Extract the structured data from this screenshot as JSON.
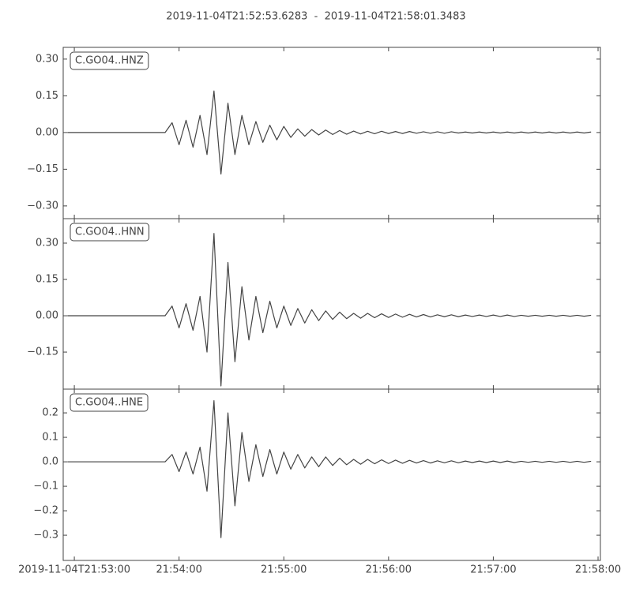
{
  "title": "2019-11-04T21:52:53.6283  -  2019-11-04T21:58:01.3483",
  "chart_data": [
    {
      "type": "line",
      "label": "C.GO04..HNZ",
      "color": "#444444",
      "xlim": [
        "21:52:53.6283",
        "21:58:01.3483"
      ],
      "ylim": [
        -0.352,
        0.348
      ],
      "yticks": [
        {
          "value": -0.3,
          "label": "−0.30"
        },
        {
          "value": -0.15,
          "label": "−0.15"
        },
        {
          "value": 0,
          "label": "0.00"
        },
        {
          "value": 0.15,
          "label": "0.15"
        },
        {
          "value": 0.3,
          "label": "0.30"
        }
      ],
      "x": [
        "21:52:56",
        "21:53:00",
        "21:53:04",
        "21:53:08",
        "21:53:12",
        "21:53:16",
        "21:53:20",
        "21:53:24",
        "21:53:28",
        "21:53:32",
        "21:53:36",
        "21:53:40",
        "21:53:44",
        "21:53:48",
        "21:53:52",
        "21:53:56",
        "21:54:00",
        "21:54:04",
        "21:54:08",
        "21:54:12",
        "21:54:16",
        "21:54:20",
        "21:54:24",
        "21:54:28",
        "21:54:32",
        "21:54:36",
        "21:54:40",
        "21:54:44",
        "21:54:48",
        "21:54:52",
        "21:54:56",
        "21:55:00",
        "21:55:04",
        "21:55:08",
        "21:55:12",
        "21:55:16",
        "21:55:20",
        "21:55:24",
        "21:55:28",
        "21:55:32",
        "21:55:36",
        "21:55:40",
        "21:55:44",
        "21:55:48",
        "21:55:52",
        "21:55:56",
        "21:56:00",
        "21:56:04",
        "21:56:08",
        "21:56:12",
        "21:56:16",
        "21:56:20",
        "21:56:24",
        "21:56:28",
        "21:56:32",
        "21:56:36",
        "21:56:40",
        "21:56:44",
        "21:56:48",
        "21:56:52",
        "21:56:56",
        "21:57:00",
        "21:57:04",
        "21:57:08",
        "21:57:12",
        "21:57:16",
        "21:57:20",
        "21:57:24",
        "21:57:28",
        "21:57:32",
        "21:57:36",
        "21:57:40",
        "21:57:44",
        "21:57:48",
        "21:57:52",
        "21:57:56"
      ],
      "values": [
        0,
        0,
        0,
        0,
        0,
        0,
        0,
        0,
        0,
        0,
        0,
        0,
        0,
        0,
        0,
        0.04,
        -0.05,
        0.05,
        -0.06,
        0.07,
        -0.09,
        0.17,
        -0.17,
        0.12,
        -0.09,
        0.07,
        -0.05,
        0.045,
        -0.04,
        0.03,
        -0.03,
        0.025,
        -0.02,
        0.015,
        -0.015,
        0.012,
        -0.01,
        0.01,
        -0.008,
        0.008,
        -0.007,
        0.006,
        -0.006,
        0.005,
        -0.005,
        0.005,
        -0.004,
        0.004,
        -0.004,
        0.004,
        -0.003,
        0.003,
        -0.003,
        0.003,
        -0.003,
        0.003,
        -0.002,
        0.002,
        -0.002,
        0.002,
        -0.002,
        0.002,
        -0.002,
        0.002,
        -0.002,
        0.002,
        -0.002,
        0.002,
        -0.002,
        0.002,
        -0.002,
        0.002,
        -0.002,
        0.002,
        -0.002,
        0.002
      ]
    },
    {
      "type": "line",
      "label": "C.GO04..HNN",
      "color": "#444444",
      "xlim": [
        "21:52:53.6283",
        "21:58:01.3483"
      ],
      "ylim": [
        -0.303,
        0.401
      ],
      "yticks": [
        {
          "value": -0.15,
          "label": "−0.15"
        },
        {
          "value": 0,
          "label": "0.00"
        },
        {
          "value": 0.15,
          "label": "0.15"
        },
        {
          "value": 0.3,
          "label": "0.30"
        }
      ],
      "x": [
        "21:52:56",
        "21:53:00",
        "21:53:04",
        "21:53:08",
        "21:53:12",
        "21:53:16",
        "21:53:20",
        "21:53:24",
        "21:53:28",
        "21:53:32",
        "21:53:36",
        "21:53:40",
        "21:53:44",
        "21:53:48",
        "21:53:52",
        "21:53:56",
        "21:54:00",
        "21:54:04",
        "21:54:08",
        "21:54:12",
        "21:54:16",
        "21:54:20",
        "21:54:24",
        "21:54:28",
        "21:54:32",
        "21:54:36",
        "21:54:40",
        "21:54:44",
        "21:54:48",
        "21:54:52",
        "21:54:56",
        "21:55:00",
        "21:55:04",
        "21:55:08",
        "21:55:12",
        "21:55:16",
        "21:55:20",
        "21:55:24",
        "21:55:28",
        "21:55:32",
        "21:55:36",
        "21:55:40",
        "21:55:44",
        "21:55:48",
        "21:55:52",
        "21:55:56",
        "21:56:00",
        "21:56:04",
        "21:56:08",
        "21:56:12",
        "21:56:16",
        "21:56:20",
        "21:56:24",
        "21:56:28",
        "21:56:32",
        "21:56:36",
        "21:56:40",
        "21:56:44",
        "21:56:48",
        "21:56:52",
        "21:56:56",
        "21:57:00",
        "21:57:04",
        "21:57:08",
        "21:57:12",
        "21:57:16",
        "21:57:20",
        "21:57:24",
        "21:57:28",
        "21:57:32",
        "21:57:36",
        "21:57:40",
        "21:57:44",
        "21:57:48",
        "21:57:52",
        "21:57:56"
      ],
      "values": [
        0,
        0,
        0,
        0,
        0,
        0,
        0,
        0,
        0,
        0,
        0,
        0,
        0,
        0,
        0,
        0.04,
        -0.05,
        0.05,
        -0.06,
        0.08,
        -0.15,
        0.34,
        -0.29,
        0.22,
        -0.19,
        0.12,
        -0.1,
        0.08,
        -0.07,
        0.06,
        -0.05,
        0.04,
        -0.04,
        0.03,
        -0.03,
        0.025,
        -0.02,
        0.02,
        -0.015,
        0.015,
        -0.012,
        0.01,
        -0.01,
        0.01,
        -0.008,
        0.008,
        -0.007,
        0.007,
        -0.006,
        0.006,
        -0.005,
        0.005,
        -0.005,
        0.004,
        -0.004,
        0.004,
        -0.004,
        0.003,
        -0.003,
        0.003,
        -0.003,
        0.003,
        -0.003,
        0.003,
        -0.003,
        0.002,
        -0.002,
        0.002,
        -0.002,
        0.002,
        -0.002,
        0.002,
        -0.002,
        0.002,
        -0.002,
        0.002
      ]
    },
    {
      "type": "line",
      "label": "C.GO04..HNE",
      "color": "#444444",
      "xlim": [
        "21:52:53.6283",
        "21:58:01.3483"
      ],
      "ylim": [
        -0.403,
        0.297
      ],
      "yticks": [
        {
          "value": -0.3,
          "label": "−0.3"
        },
        {
          "value": -0.2,
          "label": "−0.2"
        },
        {
          "value": -0.1,
          "label": "−0.1"
        },
        {
          "value": 0,
          "label": "0.0"
        },
        {
          "value": 0.1,
          "label": "0.1"
        },
        {
          "value": 0.2,
          "label": "0.2"
        }
      ],
      "xticks": [
        {
          "value": "21:53:00",
          "label": "2019-11-04T21:53:00"
        },
        "21:54:00",
        "21:55:00",
        "21:56:00",
        "21:57:00",
        "21:58:00"
      ],
      "x": [
        "21:52:56",
        "21:53:00",
        "21:53:04",
        "21:53:08",
        "21:53:12",
        "21:53:16",
        "21:53:20",
        "21:53:24",
        "21:53:28",
        "21:53:32",
        "21:53:36",
        "21:53:40",
        "21:53:44",
        "21:53:48",
        "21:53:52",
        "21:53:56",
        "21:54:00",
        "21:54:04",
        "21:54:08",
        "21:54:12",
        "21:54:16",
        "21:54:20",
        "21:54:24",
        "21:54:28",
        "21:54:32",
        "21:54:36",
        "21:54:40",
        "21:54:44",
        "21:54:48",
        "21:54:52",
        "21:54:56",
        "21:55:00",
        "21:55:04",
        "21:55:08",
        "21:55:12",
        "21:55:16",
        "21:55:20",
        "21:55:24",
        "21:55:28",
        "21:55:32",
        "21:55:36",
        "21:55:40",
        "21:55:44",
        "21:55:48",
        "21:55:52",
        "21:55:56",
        "21:56:00",
        "21:56:04",
        "21:56:08",
        "21:56:12",
        "21:56:16",
        "21:56:20",
        "21:56:24",
        "21:56:28",
        "21:56:32",
        "21:56:36",
        "21:56:40",
        "21:56:44",
        "21:56:48",
        "21:56:52",
        "21:56:56",
        "21:57:00",
        "21:57:04",
        "21:57:08",
        "21:57:12",
        "21:57:16",
        "21:57:20",
        "21:57:24",
        "21:57:28",
        "21:57:32",
        "21:57:36",
        "21:57:40",
        "21:57:44",
        "21:57:48",
        "21:57:52",
        "21:57:56"
      ],
      "values": [
        0,
        0,
        0,
        0,
        0,
        0,
        0,
        0,
        0,
        0,
        0,
        0,
        0,
        0,
        0,
        0.03,
        -0.04,
        0.04,
        -0.05,
        0.06,
        -0.12,
        0.25,
        -0.31,
        0.2,
        -0.18,
        0.12,
        -0.08,
        0.07,
        -0.06,
        0.05,
        -0.05,
        0.04,
        -0.03,
        0.03,
        -0.025,
        0.02,
        -0.02,
        0.02,
        -0.015,
        0.015,
        -0.012,
        0.01,
        -0.01,
        0.01,
        -0.008,
        0.008,
        -0.007,
        0.007,
        -0.006,
        0.006,
        -0.005,
        0.005,
        -0.005,
        0.004,
        -0.004,
        0.004,
        -0.004,
        0.003,
        -0.003,
        0.003,
        -0.003,
        0.003,
        -0.003,
        0.003,
        -0.003,
        0.002,
        -0.002,
        0.002,
        -0.002,
        0.002,
        -0.002,
        0.002,
        -0.002,
        0.002,
        -0.002,
        0.002
      ]
    }
  ]
}
